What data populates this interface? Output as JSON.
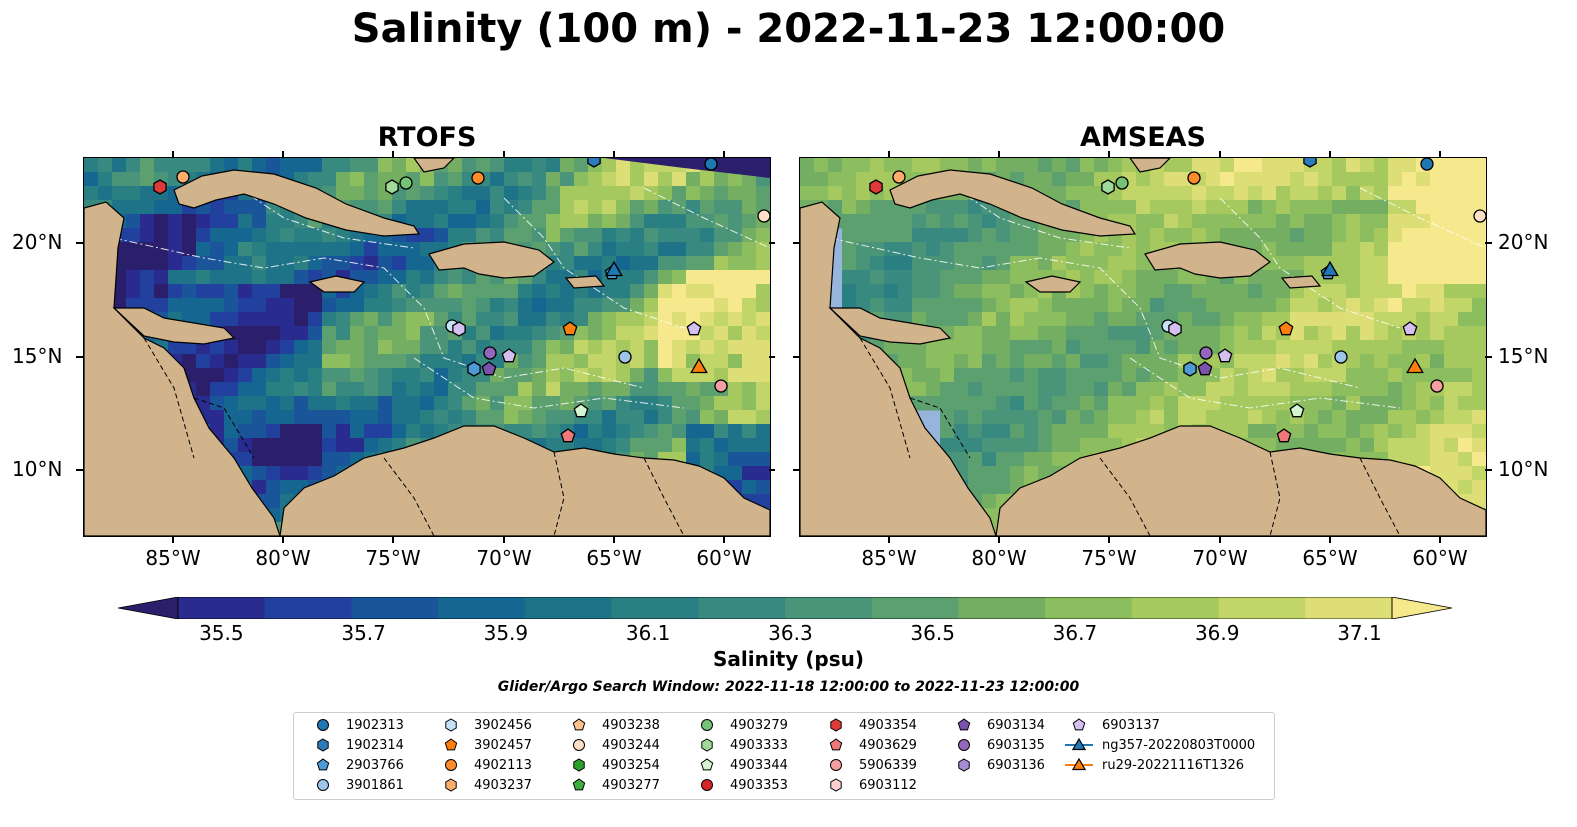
{
  "title": "Salinity (100 m) - 2022-11-23 12:00:00",
  "panels": [
    {
      "title": "RTOFS",
      "colormode": "rtofs"
    },
    {
      "title": "AMSEAS",
      "colormode": "amseas"
    }
  ],
  "axes": {
    "lon_ticks": [
      "85°W",
      "80°W",
      "75°W",
      "70°W",
      "65°W",
      "60°W"
    ],
    "lat_ticks": [
      "20°N",
      "15°N",
      "10°N"
    ]
  },
  "colorbar": {
    "tick_labels": [
      "35.5",
      "35.7",
      "35.9",
      "36.1",
      "36.3",
      "36.5",
      "36.7",
      "36.9",
      "37.1"
    ],
    "label": "Salinity (psu)",
    "colors": [
      "#2b1e6b",
      "#2a2b8f",
      "#22409d",
      "#1a559a",
      "#166692",
      "#1f7388",
      "#2a7f83",
      "#38897f",
      "#4a9479",
      "#5ca070",
      "#73ae63",
      "#8cbd5e",
      "#a6c95f",
      "#c2d568",
      "#ddde75",
      "#f6e98d"
    ],
    "extend": "both"
  },
  "search_window": "Glider/Argo Search Window: 2022-11-18 12:00:00 to 2022-11-23 12:00:00",
  "legend": {
    "columns": [
      [
        {
          "label": "1902313",
          "shape": "circle",
          "color": "#1f77b4"
        },
        {
          "label": "1902314",
          "shape": "hexagon",
          "color": "#2b7bba"
        },
        {
          "label": "2903766",
          "shape": "pentagon",
          "color": "#4d9ad4"
        },
        {
          "label": "3901861",
          "shape": "circle",
          "color": "#9ec5ea"
        }
      ],
      [
        {
          "label": "3902456",
          "shape": "hexagon",
          "color": "#c6e2f6"
        },
        {
          "label": "3902457",
          "shape": "pentagon",
          "color": "#ff7f0e"
        },
        {
          "label": "4902113",
          "shape": "circle",
          "color": "#ff8c2a"
        },
        {
          "label": "4903237",
          "shape": "hexagon",
          "color": "#fdae6b"
        }
      ],
      [
        {
          "label": "4903238",
          "shape": "pentagon",
          "color": "#fdc38d"
        },
        {
          "label": "4903244",
          "shape": "circle",
          "color": "#fde0c5"
        },
        {
          "label": "4903254",
          "shape": "hexagon",
          "color": "#2ca02c"
        },
        {
          "label": "4903277",
          "shape": "pentagon",
          "color": "#3fae3f"
        }
      ],
      [
        {
          "label": "4903279",
          "shape": "circle",
          "color": "#74c476"
        },
        {
          "label": "4903333",
          "shape": "hexagon",
          "color": "#a1d99b"
        },
        {
          "label": "4903344",
          "shape": "pentagon",
          "color": "#d4f5cf"
        },
        {
          "label": "4903353",
          "shape": "circle",
          "color": "#d62728"
        }
      ],
      [
        {
          "label": "4903354",
          "shape": "hexagon",
          "color": "#e0393a"
        },
        {
          "label": "4903629",
          "shape": "pentagon",
          "color": "#f2777a"
        },
        {
          "label": "5906339",
          "shape": "circle",
          "color": "#f4a0a0"
        },
        {
          "label": "6903112",
          "shape": "hexagon",
          "color": "#fcd0d0"
        }
      ],
      [
        {
          "label": "6903134",
          "shape": "pentagon",
          "color": "#7b52ae"
        },
        {
          "label": "6903135",
          "shape": "circle",
          "color": "#9467bd"
        },
        {
          "label": "6903136",
          "shape": "hexagon",
          "color": "#a98bd4"
        }
      ],
      [
        {
          "label": "6903137",
          "shape": "pentagon",
          "color": "#d4bff0"
        },
        {
          "label": "ng357-20220803T0000",
          "shape": "triangle-line",
          "color": "#1f77b4"
        },
        {
          "label": "ru29-20221116T1326",
          "shape": "triangle-line",
          "color": "#ff7f0e"
        }
      ]
    ]
  },
  "colors": {
    "land": "#d2b48c",
    "ocean": "#96b4dc",
    "land_edge": "#000000",
    "grid": "#ffffff"
  }
}
